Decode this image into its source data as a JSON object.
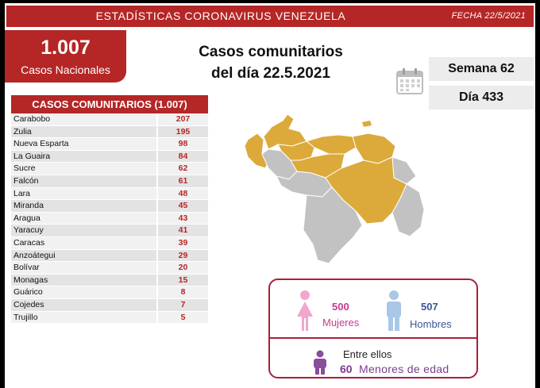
{
  "header": {
    "title": "ESTADÍSTICAS CORONAVIRUS VENEZUELA",
    "date": "FECHA 22/5/2021"
  },
  "national": {
    "count": "1.007",
    "label": "Casos Nacionales"
  },
  "headline": {
    "line1": "Casos comunitarios",
    "line2": "del día 22.5.2021"
  },
  "week": "Semana 62",
  "day": "Día 433",
  "table": {
    "title": "CASOS COMUNITARIOS (1.007)",
    "rows": [
      {
        "name": "Carabobo",
        "value": "207"
      },
      {
        "name": "Zulia",
        "value": "195"
      },
      {
        "name": "Nueva Esparta",
        "value": "98"
      },
      {
        "name": "La Guaira",
        "value": "84"
      },
      {
        "name": "Sucre",
        "value": "62"
      },
      {
        "name": "Falcón",
        "value": "61"
      },
      {
        "name": "Lara",
        "value": "48"
      },
      {
        "name": "Miranda",
        "value": "45"
      },
      {
        "name": "Aragua",
        "value": "43"
      },
      {
        "name": "Yaracuy",
        "value": "41"
      },
      {
        "name": "Caracas",
        "value": "39"
      },
      {
        "name": "Anzoátegui",
        "value": "29"
      },
      {
        "name": "Bolívar",
        "value": "20"
      },
      {
        "name": "Monagas",
        "value": "15"
      },
      {
        "name": "Guárico",
        "value": "8"
      },
      {
        "name": "Cojedes",
        "value": "7"
      },
      {
        "name": "Trujillo",
        "value": "5"
      }
    ]
  },
  "gender": {
    "women_count": "500",
    "women_label": "Mujeres",
    "men_count": "507",
    "men_label": "Hombres",
    "among_label": "Entre ellos",
    "minors_count": "60",
    "minors_label": "Menores de edad"
  },
  "colors": {
    "brand_red": "#b52626",
    "map_affected": "#dcaa3a",
    "map_unaffected": "#c2c2c2",
    "women": "#f2a6cc",
    "men": "#a9c7e6",
    "minors": "#8a4c9c"
  },
  "icons": [
    "calendar-icon",
    "woman-icon",
    "man-icon",
    "child-icon"
  ]
}
